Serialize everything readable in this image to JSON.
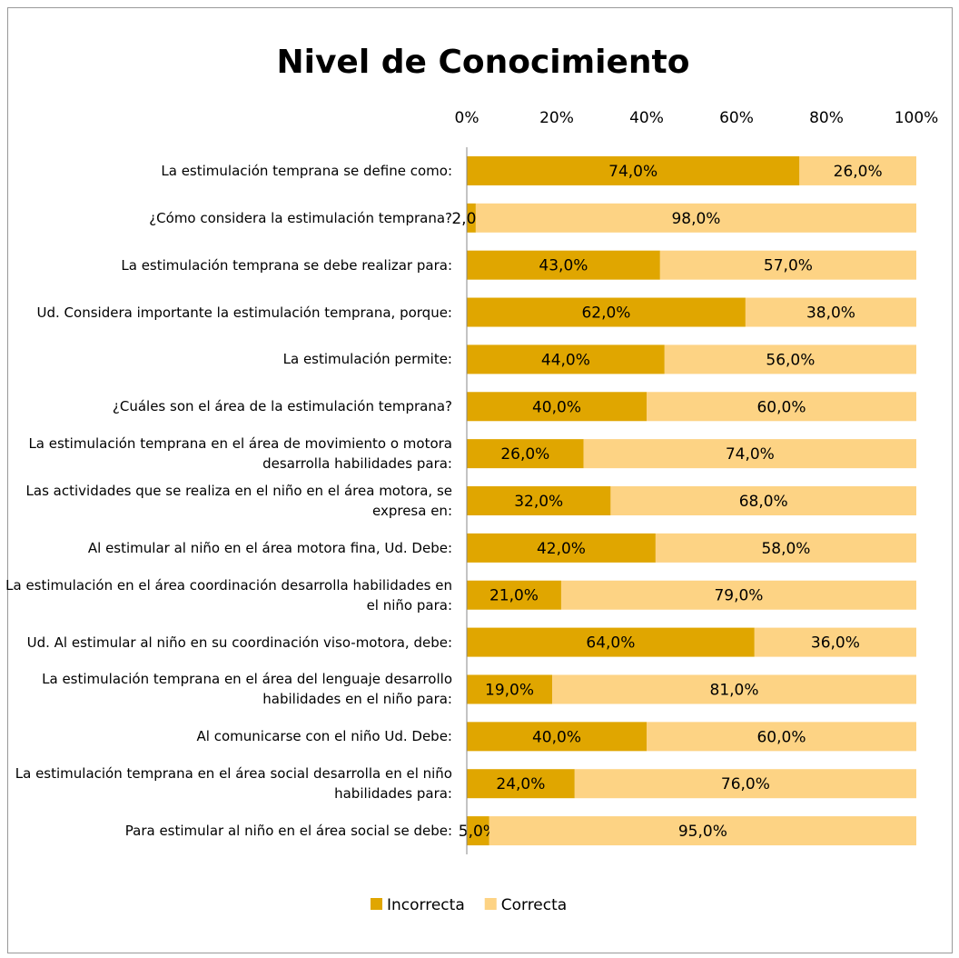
{
  "chart_data": {
    "type": "stacked_barh",
    "title": "Nivel de Conocimiento",
    "categories": [
      "La estimulación temprana se define como:",
      "¿Cómo considera la estimulación temprana?",
      "La estimulación temprana se debe realizar para:",
      "Ud. Considera importante la estimulación temprana, porque:",
      "La estimulación permite:",
      "¿Cuáles son el área de la estimulación temprana?",
      "La estimulación temprana en el área de movimiento o motora desarrolla habilidades para:",
      "Las actividades que se realiza en el niño en el área motora, se expresa en:",
      "Al estimular al niño en el área motora fina, Ud. Debe:",
      "La estimulación en el área coordinación desarrolla habilidades en el niño para:",
      "Ud. Al estimular al niño en su coordinación viso-motora, debe:",
      "La estimulación temprana en el área del lenguaje desarrollo habilidades en el niño para:",
      "Al comunicarse con el niño Ud. Debe:",
      "La estimulación temprana en el área social desarrolla en el niño habilidades para:",
      "Para estimular al niño en el área social se debe:"
    ],
    "series": [
      {
        "name": "Incorrecta",
        "color": "#e0a600",
        "values": [
          74,
          2,
          43,
          62,
          44,
          40,
          26,
          32,
          42,
          21,
          64,
          19,
          40,
          24,
          5
        ],
        "value_labels": [
          "74,0%",
          "2,0%",
          "43,0%",
          "62,0%",
          "44,0%",
          "40,0%",
          "26,0%",
          "32,0%",
          "42,0%",
          "21,0%",
          "64,0%",
          "19,0%",
          "40,0%",
          "24,0%",
          "5,0%"
        ]
      },
      {
        "name": "Correcta",
        "color": "#fdd384",
        "values": [
          26,
          98,
          57,
          38,
          56,
          60,
          74,
          68,
          58,
          79,
          36,
          81,
          60,
          76,
          95
        ],
        "value_labels": [
          "26,0%",
          "98,0%",
          "57,0%",
          "38,0%",
          "56,0%",
          "60,0%",
          "74,0%",
          "68,0%",
          "58,0%",
          "79,0%",
          "36,0%",
          "81,0%",
          "60,0%",
          "76,0%",
          "95,0%"
        ]
      }
    ],
    "xlim": [
      0,
      100
    ],
    "xticks": [
      {
        "value": 0,
        "label": "0%"
      },
      {
        "value": 20,
        "label": "20%"
      },
      {
        "value": 40,
        "label": "40%"
      },
      {
        "value": 60,
        "label": "60%"
      },
      {
        "value": 80,
        "label": "80%"
      },
      {
        "value": 100,
        "label": "100%"
      }
    ],
    "legend": "bottom"
  }
}
